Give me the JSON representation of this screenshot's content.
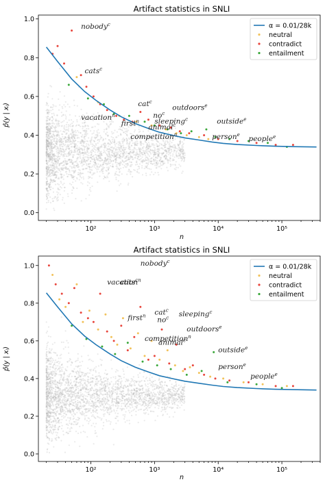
{
  "colors": {
    "curve": "#1f77b4",
    "neutral": "#f2c25a",
    "contradict": "#e8453c",
    "entailment": "#3aa83a",
    "background_points": "#b4b4b4"
  },
  "chart_data": [
    {
      "type": "scatter",
      "title": "Artifact statistics in SNLI",
      "xlabel": "n",
      "ylabel": "p̂(y | xᵢ)",
      "xscale": "log",
      "xlim": [
        15,
        400000
      ],
      "ylim": [
        -0.04,
        1.02
      ],
      "xticks": [
        100,
        1000,
        10000,
        100000
      ],
      "xtick_labels": [
        "10²",
        "10³",
        "10⁴",
        "10⁵"
      ],
      "yticks": [
        0.0,
        0.2,
        0.4,
        0.6,
        0.8,
        1.0
      ],
      "ytick_labels": [
        "0.0",
        "0.2",
        "0.4",
        "0.6",
        "0.8",
        "1.0"
      ],
      "legend_position": "top-right",
      "legend": [
        {
          "label": "α = 0.01/28k",
          "kind": "line",
          "color": "#1f77b4"
        },
        {
          "label": "neutral",
          "kind": "point",
          "color": "#f2c25a"
        },
        {
          "label": "contradict",
          "kind": "point",
          "color": "#e8453c"
        },
        {
          "label": "entailment",
          "kind": "point",
          "color": "#3aa83a"
        }
      ],
      "curve": {
        "name": "α = 0.01/28k",
        "x": [
          20,
          30,
          50,
          80,
          120,
          200,
          300,
          500,
          800,
          1200,
          2000,
          3000,
          5000,
          8000,
          12000,
          20000,
          40000,
          80000,
          150000,
          350000
        ],
        "y": [
          0.855,
          0.78,
          0.69,
          0.625,
          0.58,
          0.53,
          0.495,
          0.46,
          0.435,
          0.415,
          0.398,
          0.386,
          0.375,
          0.365,
          0.358,
          0.352,
          0.347,
          0.343,
          0.341,
          0.339
        ]
      },
      "series": [
        {
          "name": "contradict",
          "x": [
            25,
            30,
            38,
            50,
            70,
            85,
            110,
            140,
            180,
            250,
            330,
            450,
            600,
            800,
            1200,
            1800,
            2500,
            3500,
            6000,
            10000,
            20000,
            40000,
            80000,
            150000
          ],
          "y": [
            0.82,
            0.86,
            0.77,
            0.94,
            0.71,
            0.65,
            0.6,
            0.56,
            0.53,
            0.5,
            0.48,
            0.47,
            0.52,
            0.48,
            0.45,
            0.44,
            0.42,
            0.41,
            0.4,
            0.38,
            0.37,
            0.36,
            0.35,
            0.35
          ]
        },
        {
          "name": "entailment",
          "x": [
            45,
            90,
            160,
            230,
            400,
            700,
            1000,
            1600,
            2600,
            3800,
            6500,
            9000,
            15000,
            30000,
            60000,
            120000
          ],
          "y": [
            0.66,
            0.59,
            0.56,
            0.51,
            0.5,
            0.47,
            0.45,
            0.43,
            0.41,
            0.42,
            0.43,
            0.39,
            0.38,
            0.37,
            0.36,
            0.34
          ]
        },
        {
          "name": "neutral",
          "x": [
            60,
            130,
            280,
            520,
            900,
            1500,
            2200,
            3200,
            5000,
            7000
          ],
          "y": [
            0.7,
            0.57,
            0.5,
            0.47,
            0.45,
            0.43,
            0.41,
            0.4,
            0.39,
            0.38
          ]
        }
      ],
      "annotations": [
        {
          "text": "nobody",
          "sup": "c",
          "x": 70,
          "y": 0.95
        },
        {
          "text": "cats",
          "sup": "c",
          "x": 80,
          "y": 0.72
        },
        {
          "text": "cat",
          "sup": "c",
          "x": 550,
          "y": 0.55
        },
        {
          "text": "no",
          "sup": "c",
          "x": 950,
          "y": 0.49
        },
        {
          "text": "outdoors",
          "sup": "e",
          "x": 1900,
          "y": 0.53
        },
        {
          "text": "vacation",
          "sup": "n",
          "x": 70,
          "y": 0.48
        },
        {
          "text": "first",
          "sup": "n",
          "x": 300,
          "y": 0.45
        },
        {
          "text": "sleeping",
          "sup": "c",
          "x": 1000,
          "y": 0.46
        },
        {
          "text": "animal",
          "sup": "c",
          "x": 800,
          "y": 0.43
        },
        {
          "text": "outside",
          "sup": "e",
          "x": 9500,
          "y": 0.46
        },
        {
          "text": "competition",
          "sup": "n",
          "x": 420,
          "y": 0.38
        },
        {
          "text": "person",
          "sup": "e",
          "x": 8000,
          "y": 0.38
        },
        {
          "text": "people",
          "sup": "e",
          "x": 30000,
          "y": 0.37
        }
      ]
    },
    {
      "type": "scatter",
      "title": "Artifact statistics in SNLI",
      "xlabel": "n",
      "ylabel": "p̂(y | xᵢ)",
      "xscale": "log",
      "xlim": [
        15,
        400000
      ],
      "ylim": [
        -0.04,
        1.05
      ],
      "xticks": [
        100,
        1000,
        10000,
        100000
      ],
      "xtick_labels": [
        "10²",
        "10³",
        "10⁴",
        "10⁵"
      ],
      "yticks": [
        0.0,
        0.2,
        0.4,
        0.6,
        0.8,
        1.0
      ],
      "ytick_labels": [
        "0.0",
        "0.2",
        "0.4",
        "0.6",
        "0.8",
        "1.0"
      ],
      "legend_position": "top-right",
      "legend": [
        {
          "label": "α = 0.01/28k",
          "kind": "line",
          "color": "#1f77b4"
        },
        {
          "label": "neutral",
          "kind": "point",
          "color": "#f2c25a"
        },
        {
          "label": "contradict",
          "kind": "point",
          "color": "#e8453c"
        },
        {
          "label": "entailment",
          "kind": "point",
          "color": "#3aa83a"
        }
      ],
      "curve": {
        "name": "α = 0.01/28k",
        "x": [
          20,
          30,
          50,
          80,
          120,
          200,
          300,
          500,
          800,
          1200,
          2000,
          3000,
          5000,
          8000,
          12000,
          20000,
          40000,
          80000,
          150000,
          350000
        ],
        "y": [
          0.855,
          0.78,
          0.69,
          0.625,
          0.58,
          0.53,
          0.495,
          0.46,
          0.435,
          0.415,
          0.398,
          0.386,
          0.375,
          0.365,
          0.358,
          0.352,
          0.347,
          0.343,
          0.341,
          0.339
        ]
      },
      "series": [
        {
          "name": "contradict",
          "x": [
            22,
            28,
            35,
            45,
            55,
            70,
            90,
            110,
            140,
            180,
            230,
            300,
            380,
            480,
            600,
            800,
            1000,
            1300,
            1700,
            2200,
            3000,
            4000,
            6000,
            9000,
            15000,
            30000,
            80000,
            150000
          ],
          "y": [
            1.0,
            0.9,
            0.85,
            0.8,
            0.88,
            0.75,
            0.72,
            0.7,
            0.85,
            0.65,
            0.6,
            0.68,
            0.55,
            0.62,
            0.78,
            0.5,
            0.52,
            0.66,
            0.48,
            0.58,
            0.45,
            0.47,
            0.42,
            0.4,
            0.39,
            0.38,
            0.36,
            0.36
          ]
        },
        {
          "name": "neutral",
          "x": [
            25,
            32,
            40,
            60,
            75,
            95,
            130,
            170,
            210,
            260,
            320,
            420,
            550,
            700,
            900,
            1200,
            1600,
            2100,
            2800,
            3600,
            5000,
            7500,
            12000,
            25000,
            50000,
            120000
          ],
          "y": [
            0.95,
            0.82,
            0.78,
            0.9,
            0.7,
            0.76,
            0.66,
            0.74,
            0.62,
            0.58,
            0.72,
            0.56,
            0.64,
            0.52,
            0.6,
            0.5,
            0.55,
            0.47,
            0.44,
            0.46,
            0.43,
            0.41,
            0.4,
            0.38,
            0.37,
            0.36
          ]
        },
        {
          "name": "entailment",
          "x": [
            50,
            85,
            150,
            240,
            380,
            650,
            1100,
            1800,
            3200,
            5500,
            8500,
            14000,
            40000,
            100000
          ],
          "y": [
            0.68,
            0.61,
            0.57,
            0.53,
            0.59,
            0.49,
            0.47,
            0.45,
            0.42,
            0.44,
            0.54,
            0.38,
            0.37,
            0.35
          ]
        }
      ],
      "annotations": [
        {
          "text": "nobody",
          "sup": "c",
          "x": 600,
          "y": 1.0
        },
        {
          "text": "vacation",
          "sup": "n",
          "x": 180,
          "y": 0.9
        },
        {
          "text": "cats",
          "sup": "c",
          "x": 290,
          "y": 0.9
        },
        {
          "text": "cat",
          "sup": "c",
          "x": 1000,
          "y": 0.74
        },
        {
          "text": "sleeping",
          "sup": "c",
          "x": 2400,
          "y": 0.73
        },
        {
          "text": "first",
          "sup": "n",
          "x": 380,
          "y": 0.71
        },
        {
          "text": "no",
          "sup": "c",
          "x": 1100,
          "y": 0.7
        },
        {
          "text": "outdoors",
          "sup": "e",
          "x": 3200,
          "y": 0.65
        },
        {
          "text": "competition",
          "sup": "n",
          "x": 700,
          "y": 0.6
        },
        {
          "text": "animal",
          "sup": "c",
          "x": 1150,
          "y": 0.58
        },
        {
          "text": "outside",
          "sup": "e",
          "x": 10000,
          "y": 0.54
        },
        {
          "text": "person",
          "sup": "e",
          "x": 10000,
          "y": 0.45
        },
        {
          "text": "people",
          "sup": "e",
          "x": 32000,
          "y": 0.4
        }
      ]
    }
  ]
}
